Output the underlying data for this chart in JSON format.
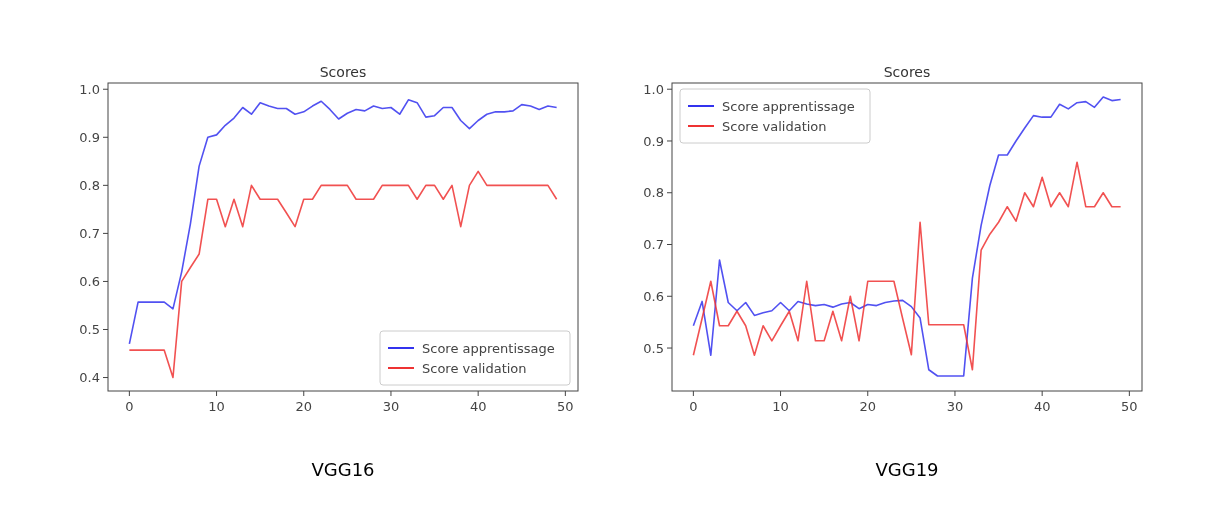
{
  "chart_data": [
    {
      "type": "line",
      "title": "Scores",
      "x": [
        0,
        1,
        2,
        3,
        4,
        5,
        6,
        7,
        8,
        9,
        10,
        11,
        12,
        13,
        14,
        15,
        16,
        17,
        18,
        19,
        20,
        21,
        22,
        23,
        24,
        25,
        26,
        27,
        28,
        29,
        30,
        31,
        32,
        33,
        34,
        35,
        36,
        37,
        38,
        39,
        40,
        41,
        42,
        43,
        44,
        45,
        46,
        47,
        48,
        49
      ],
      "series": [
        {
          "name": "Score apprentissage",
          "color": "#3333ee",
          "values": [
            0.47,
            0.557,
            0.557,
            0.557,
            0.557,
            0.543,
            0.62,
            0.72,
            0.84,
            0.9,
            0.905,
            0.925,
            0.94,
            0.962,
            0.948,
            0.972,
            0.965,
            0.96,
            0.96,
            0.948,
            0.953,
            0.965,
            0.975,
            0.958,
            0.938,
            0.95,
            0.958,
            0.955,
            0.965,
            0.96,
            0.962,
            0.948,
            0.978,
            0.972,
            0.942,
            0.945,
            0.962,
            0.962,
            0.935,
            0.918,
            0.935,
            0.948,
            0.953,
            0.953,
            0.955,
            0.968,
            0.965,
            0.958,
            0.965,
            0.962
          ]
        },
        {
          "name": "Score validation",
          "color": "#ee3333",
          "values": [
            0.457,
            0.457,
            0.457,
            0.457,
            0.457,
            0.4,
            0.6,
            0.629,
            0.657,
            0.771,
            0.771,
            0.714,
            0.771,
            0.714,
            0.8,
            0.771,
            0.771,
            0.771,
            0.743,
            0.714,
            0.771,
            0.771,
            0.8,
            0.8,
            0.8,
            0.8,
            0.771,
            0.771,
            0.771,
            0.8,
            0.8,
            0.8,
            0.8,
            0.771,
            0.8,
            0.8,
            0.771,
            0.8,
            0.714,
            0.8,
            0.829,
            0.8,
            0.8,
            0.8,
            0.8,
            0.8,
            0.8,
            0.8,
            0.8,
            0.771
          ]
        }
      ],
      "xlim": [
        -2.45,
        51.45
      ],
      "xticks": [
        0,
        10,
        20,
        30,
        40,
        50
      ],
      "ylim": [
        0.372,
        1.013
      ],
      "yticks": [
        0.4,
        0.5,
        0.6,
        0.7,
        0.8,
        0.9,
        {
          "value": 1,
          "label": "1.0"
        }
      ],
      "grid": false,
      "legend": "bottom right",
      "annotations": [
        "VGG16"
      ]
    },
    {
      "type": "line",
      "title": "Scores",
      "x": [
        0,
        1,
        2,
        3,
        4,
        5,
        6,
        7,
        8,
        9,
        10,
        11,
        12,
        13,
        14,
        15,
        16,
        17,
        18,
        19,
        20,
        21,
        22,
        23,
        24,
        25,
        26,
        27,
        28,
        29,
        30,
        31,
        32,
        33,
        34,
        35,
        36,
        37,
        38,
        39,
        40,
        41,
        42,
        43,
        44,
        45,
        46,
        47,
        48,
        49
      ],
      "series": [
        {
          "name": "Score apprentissage",
          "color": "#3333ee",
          "values": [
            0.543,
            0.59,
            0.486,
            0.67,
            0.588,
            0.572,
            0.588,
            0.563,
            0.568,
            0.572,
            0.588,
            0.572,
            0.59,
            0.585,
            0.582,
            0.584,
            0.579,
            0.585,
            0.588,
            0.576,
            0.584,
            0.582,
            0.588,
            0.591,
            0.592,
            0.58,
            0.558,
            0.458,
            0.446,
            0.446,
            0.446,
            0.446,
            0.635,
            0.737,
            0.814,
            0.873,
            0.873,
            0.9,
            0.925,
            0.949,
            0.946,
            0.946,
            0.971,
            0.962,
            0.974,
            0.976,
            0.965,
            0.985,
            0.978,
            0.98
          ]
        },
        {
          "name": "Score validation",
          "color": "#ee3333",
          "values": [
            0.486,
            0.557,
            0.629,
            0.543,
            0.543,
            0.571,
            0.543,
            0.486,
            0.543,
            0.514,
            0.543,
            0.571,
            0.514,
            0.629,
            0.514,
            0.514,
            0.571,
            0.514,
            0.6,
            0.514,
            0.629,
            0.629,
            0.629,
            0.629,
            0.557,
            0.487,
            0.743,
            0.545,
            0.545,
            0.545,
            0.545,
            0.545,
            0.458,
            0.689,
            0.72,
            0.743,
            0.773,
            0.745,
            0.8,
            0.773,
            0.83,
            0.773,
            0.8,
            0.773,
            0.859,
            0.773,
            0.773,
            0.8,
            0.773,
            0.773
          ]
        }
      ],
      "xlim": [
        -2.45,
        51.45
      ],
      "xticks": [
        0,
        10,
        20,
        30,
        40,
        50
      ],
      "ylim": [
        0.417,
        1.012
      ],
      "yticks": [
        0.5,
        0.6,
        0.7,
        0.8,
        0.9,
        {
          "value": 1,
          "label": "1.0"
        }
      ],
      "grid": false,
      "legend": "top left",
      "annotations": [
        "VGG19"
      ]
    }
  ]
}
